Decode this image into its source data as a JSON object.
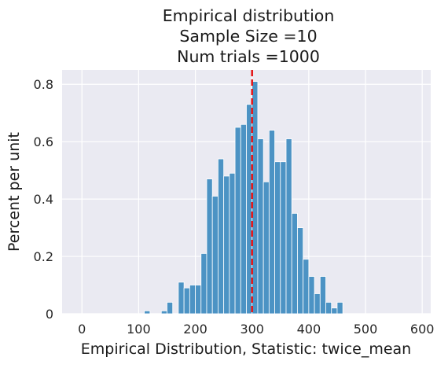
{
  "chart_data": {
    "type": "bar",
    "title_lines": [
      "Empirical distribution",
      "Sample Size =10",
      "Num trials =1000"
    ],
    "xlabel": "Empirical Distribution, Statistic: twice_mean",
    "ylabel": "Percent per unit",
    "xlim": [
      -35,
      615
    ],
    "ylim": [
      0,
      0.85
    ],
    "x_ticks": [
      0,
      100,
      200,
      300,
      400,
      500,
      600
    ],
    "y_ticks": [
      0,
      0.2,
      0.4,
      0.6,
      0.8
    ],
    "bin_width": 10,
    "bins": [
      {
        "start": 110,
        "value": 0.01
      },
      {
        "start": 140,
        "value": 0.01
      },
      {
        "start": 150,
        "value": 0.04
      },
      {
        "start": 160,
        "value": 0.0
      },
      {
        "start": 170,
        "value": 0.11
      },
      {
        "start": 180,
        "value": 0.09
      },
      {
        "start": 190,
        "value": 0.1
      },
      {
        "start": 200,
        "value": 0.1
      },
      {
        "start": 210,
        "value": 0.21
      },
      {
        "start": 220,
        "value": 0.47
      },
      {
        "start": 230,
        "value": 0.41
      },
      {
        "start": 240,
        "value": 0.54
      },
      {
        "start": 250,
        "value": 0.48
      },
      {
        "start": 260,
        "value": 0.49
      },
      {
        "start": 270,
        "value": 0.65
      },
      {
        "start": 280,
        "value": 0.66
      },
      {
        "start": 290,
        "value": 0.73
      },
      {
        "start": 300,
        "value": 0.81
      },
      {
        "start": 310,
        "value": 0.61
      },
      {
        "start": 320,
        "value": 0.46
      },
      {
        "start": 330,
        "value": 0.64
      },
      {
        "start": 340,
        "value": 0.53
      },
      {
        "start": 350,
        "value": 0.53
      },
      {
        "start": 360,
        "value": 0.61
      },
      {
        "start": 370,
        "value": 0.35
      },
      {
        "start": 380,
        "value": 0.3
      },
      {
        "start": 390,
        "value": 0.19
      },
      {
        "start": 400,
        "value": 0.13
      },
      {
        "start": 410,
        "value": 0.07
      },
      {
        "start": 420,
        "value": 0.13
      },
      {
        "start": 430,
        "value": 0.04
      },
      {
        "start": 440,
        "value": 0.02
      },
      {
        "start": 450,
        "value": 0.04
      }
    ],
    "reference_line": {
      "x": 300,
      "color": "#e41a1c",
      "style": "dashed"
    },
    "bar_color": "#4c93c4",
    "plot_background": "#eaeaf2",
    "grid": true
  }
}
